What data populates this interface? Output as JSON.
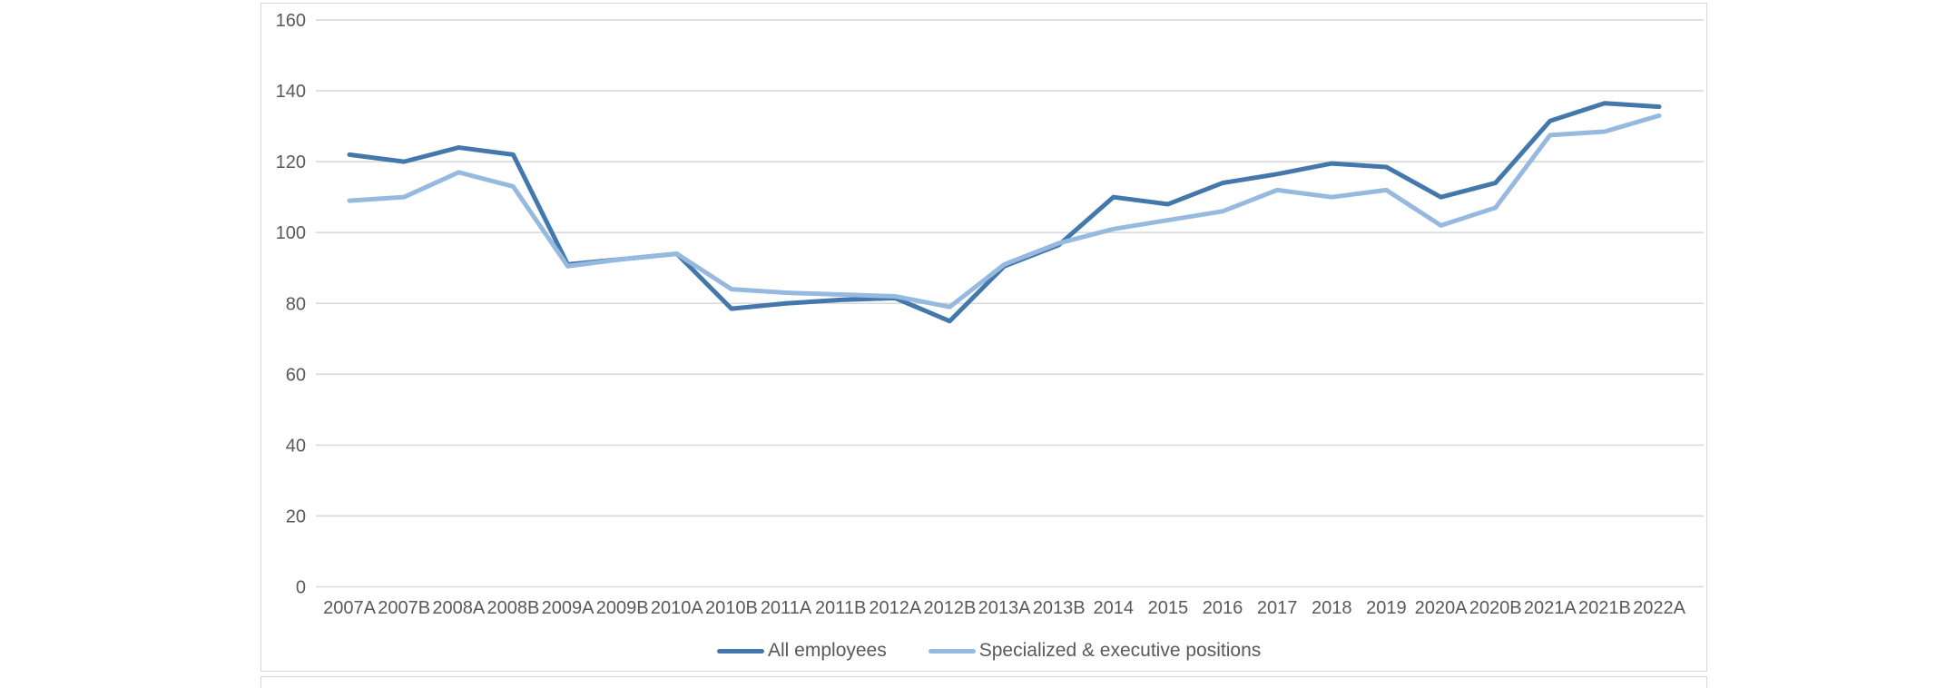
{
  "chart_data": {
    "type": "line",
    "title": "",
    "xlabel": "",
    "ylabel": "",
    "categories": [
      "2007A",
      "2007B",
      "2008A",
      "2008B",
      "2009A",
      "2009B",
      "2010A",
      "2010B",
      "2011A",
      "2011B",
      "2012A",
      "2012B",
      "2013A",
      "2013B",
      "2014",
      "2015",
      "2016",
      "2017",
      "2018",
      "2019",
      "2020A",
      "2020B",
      "2021A",
      "2021B",
      "2022A"
    ],
    "series": [
      {
        "name": "All employees",
        "color": "#4478ad",
        "values": [
          122,
          120,
          124,
          122,
          91,
          92.5,
          94,
          78.5,
          80,
          81,
          81.5,
          75,
          90.5,
          96.5,
          110,
          108,
          114,
          116.5,
          119.5,
          118.5,
          110,
          114,
          131.5,
          136.5,
          135.5
        ]
      },
      {
        "name": "Specialized & executive positions",
        "color": "#96b9e0",
        "values": [
          109,
          110,
          117,
          113,
          90.5,
          92.5,
          94,
          84,
          83,
          82.5,
          82,
          79,
          91,
          97,
          101,
          103.5,
          106,
          112,
          110,
          112,
          102,
          107,
          127.5,
          128.5,
          133
        ]
      }
    ],
    "ylim": [
      0,
      160
    ],
    "yticks": [
      0,
      20,
      40,
      60,
      80,
      100,
      120,
      140,
      160
    ],
    "grid": "horizontal-only",
    "gridline_color": "#d9d9d9",
    "axis_label_color": "#595959",
    "legend_position": "bottom-center"
  }
}
